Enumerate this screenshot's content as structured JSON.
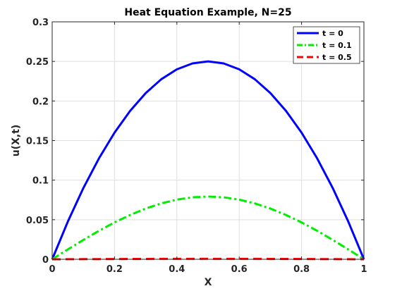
{
  "chart_data": {
    "type": "line",
    "title": "Heat Equation Example, N=25",
    "xlabel": "X",
    "ylabel": "u(X,t)",
    "xlim": [
      0,
      1
    ],
    "ylim": [
      0,
      0.3
    ],
    "xticks": [
      0,
      0.2,
      0.4,
      0.6,
      0.8,
      1
    ],
    "xtick_labels": [
      "0",
      "0.2",
      "0.4",
      "0.6",
      "0.8",
      "1"
    ],
    "yticks": [
      0,
      0.05,
      0.1,
      0.15,
      0.2,
      0.25,
      0.3
    ],
    "ytick_labels": [
      "0",
      "0.05",
      "0.1",
      "0.15",
      "0.2",
      "0.25",
      "0.3"
    ],
    "grid": true,
    "legend_position": "top-right",
    "series": [
      {
        "name": "t = 0",
        "color": "#0000ff",
        "style": "solid",
        "x": [
          0,
          0.05,
          0.1,
          0.15,
          0.2,
          0.25,
          0.3,
          0.35,
          0.4,
          0.45,
          0.5,
          0.55,
          0.6,
          0.65,
          0.7,
          0.75,
          0.8,
          0.85,
          0.9,
          0.95,
          1
        ],
        "y": [
          0,
          0.0475,
          0.09,
          0.1275,
          0.16,
          0.1875,
          0.21,
          0.2275,
          0.24,
          0.2475,
          0.25,
          0.2475,
          0.24,
          0.2275,
          0.21,
          0.1875,
          0.16,
          0.1275,
          0.09,
          0.0475,
          0
        ]
      },
      {
        "name": "t = 0.1",
        "color": "#00ee00",
        "style": "dashdot",
        "x": [
          0,
          0.05,
          0.1,
          0.15,
          0.2,
          0.25,
          0.3,
          0.35,
          0.4,
          0.45,
          0.5,
          0.55,
          0.6,
          0.65,
          0.7,
          0.75,
          0.8,
          0.85,
          0.9,
          0.95,
          1
        ],
        "y": [
          0,
          0.0124,
          0.0245,
          0.036,
          0.0466,
          0.056,
          0.0641,
          0.0706,
          0.0754,
          0.0783,
          0.0793,
          0.0783,
          0.0754,
          0.0706,
          0.0641,
          0.056,
          0.0466,
          0.036,
          0.0245,
          0.0124,
          0
        ]
      },
      {
        "name": "t = 0.5",
        "color": "#ff0000",
        "style": "dashed",
        "x": [
          0,
          0.05,
          0.1,
          0.15,
          0.2,
          0.25,
          0.3,
          0.35,
          0.4,
          0.45,
          0.5,
          0.55,
          0.6,
          0.65,
          0.7,
          0.75,
          0.8,
          0.85,
          0.9,
          0.95,
          1
        ],
        "y": [
          0,
          9e-05,
          0.00019,
          0.00028,
          0.00036,
          0.00043,
          0.00049,
          0.00054,
          0.00058,
          0.0006,
          0.00061,
          0.0006,
          0.00058,
          0.00054,
          0.00049,
          0.00043,
          0.00036,
          0.00028,
          0.00019,
          9e-05,
          0
        ]
      }
    ]
  }
}
